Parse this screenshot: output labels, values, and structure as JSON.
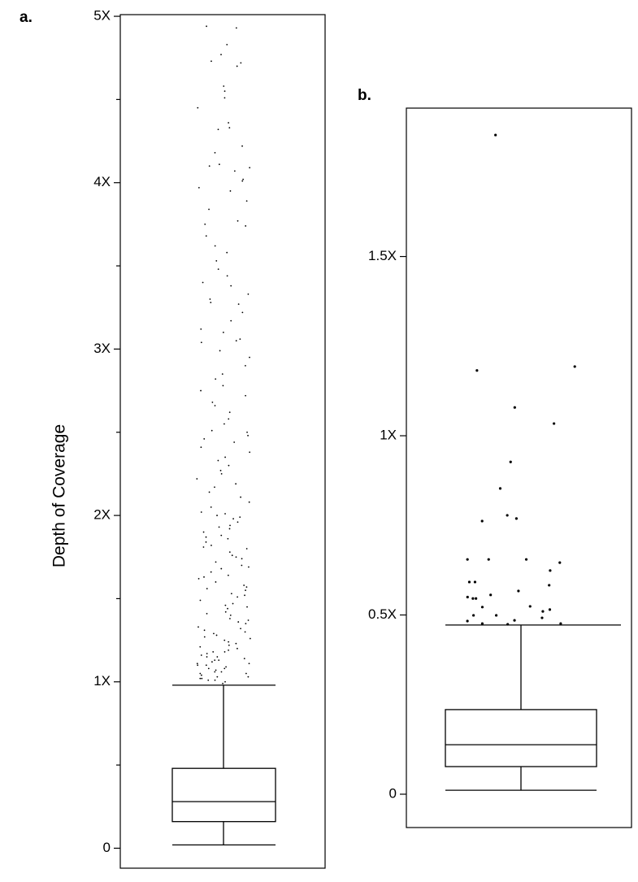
{
  "chart_data": [
    {
      "type": "box",
      "title": "a.",
      "ylabel": "Depth of Coverage",
      "ylim": [
        -0.12,
        5.01
      ],
      "yticks": [
        0,
        {
          "value": 1,
          "label": "1X"
        },
        {
          "value": 2,
          "label": "2X"
        },
        {
          "value": 3,
          "label": "3X"
        },
        {
          "value": 4,
          "label": "4X"
        },
        {
          "value": 5,
          "label": "5X"
        }
      ],
      "yminorticks": [
        0.5,
        1.5,
        2.5,
        3.5,
        4.5
      ],
      "box": {
        "whislo": 0.02,
        "q1": 0.16,
        "med": 0.28,
        "q3": 0.48,
        "whishi": 0.98
      },
      "outliers": [
        4.94,
        4.93,
        4.83,
        4.77,
        4.73,
        4.72,
        4.7,
        4.58,
        4.55,
        4.51,
        4.45,
        4.36,
        4.33,
        4.32,
        4.22,
        4.18,
        4.11,
        4.1,
        4.09,
        4.07,
        4.02,
        4.01,
        3.97,
        3.95,
        3.89,
        3.84,
        3.77,
        3.75,
        3.74,
        3.68,
        3.62,
        3.58,
        3.53,
        3.48,
        3.44,
        3.4,
        3.38,
        3.33,
        3.3,
        3.28,
        3.27,
        3.22,
        3.17,
        3.12,
        3.1,
        3.06,
        3.05,
        3.04,
        2.99,
        2.95,
        2.9,
        2.85,
        2.82,
        2.78,
        2.75,
        2.72,
        2.68,
        2.66,
        2.62,
        2.58,
        2.55,
        2.51,
        2.5,
        2.48,
        2.46,
        2.44,
        2.41,
        2.38,
        2.35,
        2.33,
        2.3,
        2.27,
        2.25,
        2.22,
        2.19,
        2.17,
        2.14,
        2.11,
        2.08,
        2.05,
        2.02,
        2.01,
        2.0,
        1.98,
        1.96,
        1.94,
        1.92,
        1.9,
        1.88,
        1.86,
        1.84,
        1.82,
        1.8,
        1.78,
        1.76,
        1.74,
        1.72,
        1.7,
        1.68,
        1.66,
        1.64,
        1.62,
        1.6,
        1.58,
        1.56,
        1.55,
        1.53,
        1.51,
        1.49,
        1.47,
        1.45,
        1.44,
        1.42,
        1.4,
        1.38,
        1.37,
        1.35,
        1.33,
        1.32,
        1.3,
        1.29,
        1.27,
        1.26,
        1.24,
        1.23,
        1.22,
        1.2,
        1.19,
        1.18,
        1.17,
        1.16,
        1.15,
        1.14,
        1.13,
        1.12,
        1.11,
        1.1,
        1.09,
        1.08,
        1.07,
        1.06,
        1.05,
        1.04,
        1.03,
        1.02,
        1.01,
        1.0,
        0.99,
        1.01,
        1.02,
        1.03,
        1.05,
        1.06,
        1.08,
        1.1,
        1.11,
        1.13,
        1.15,
        1.18,
        1.21,
        1.25,
        1.28,
        1.31,
        1.36,
        1.41,
        1.46,
        1.52,
        1.57,
        1.63,
        1.69,
        1.75,
        1.81,
        1.87,
        1.93,
        1.99
      ]
    },
    {
      "type": "box",
      "title": "b.",
      "ylim": [
        -0.093,
        1.914
      ],
      "yticks": [
        0,
        {
          "value": 0.5,
          "label": "0.5X"
        },
        {
          "value": 1,
          "label": "1X"
        },
        {
          "value": 1.5,
          "label": "1.5X"
        }
      ],
      "box": {
        "whislo": 0.011,
        "q1": 0.077,
        "med": 0.138,
        "q3": 0.236,
        "whishi": 0.472
      },
      "outliers": [
        1.839,
        1.193,
        1.182,
        1.079,
        1.034,
        0.927,
        0.853,
        0.762,
        0.778,
        0.769,
        0.655,
        0.655,
        0.655,
        0.646,
        0.624,
        0.592,
        0.592,
        0.583,
        0.567,
        0.556,
        0.546,
        0.546,
        0.55,
        0.524,
        0.522,
        0.515,
        0.51,
        0.499,
        0.499,
        0.492,
        0.485,
        0.483,
        0.476,
        0.474,
        0.476
      ]
    }
  ]
}
